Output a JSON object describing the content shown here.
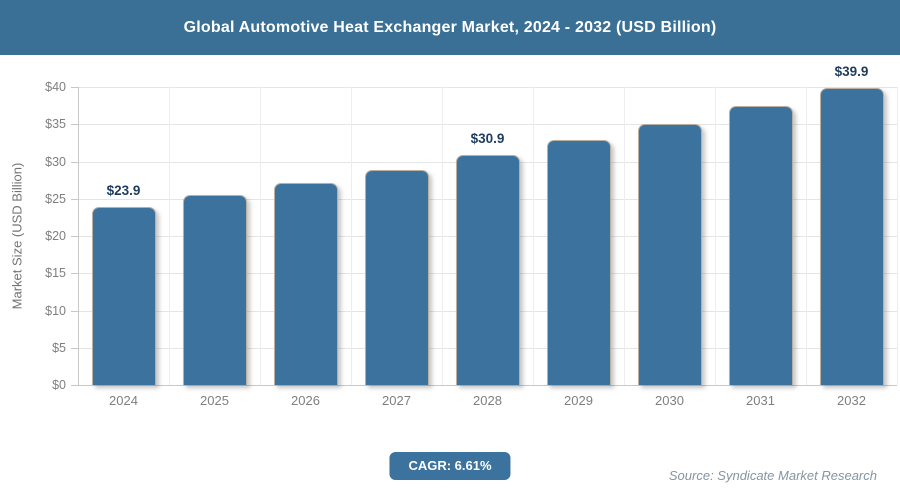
{
  "header": {
    "title": "Global Automotive Heat Exchanger Market, 2024 - 2032 (USD Billion)",
    "bg_color": "#3a7096"
  },
  "chart_data": {
    "type": "bar",
    "title": "Global Automotive Heat Exchanger Market, 2024 - 2032 (USD Billion)",
    "categories": [
      "2024",
      "2025",
      "2026",
      "2027",
      "2028",
      "2029",
      "2030",
      "2031",
      "2032"
    ],
    "values": [
      23.9,
      25.5,
      27.1,
      28.9,
      30.9,
      32.9,
      35.1,
      37.4,
      39.9
    ],
    "data_labels": [
      "$23.9",
      "",
      "",
      "",
      "$30.9",
      "",
      "",
      "",
      "$39.9"
    ],
    "xlabel": "",
    "ylabel": "Market Size (USD Billion)",
    "ylim": [
      0,
      40
    ],
    "ytick_step": 5,
    "ytick_labels": [
      "$0",
      "$5",
      "$10",
      "$15",
      "$20",
      "$25",
      "$30",
      "$35",
      "$40"
    ],
    "grid": true,
    "legend_position": "none",
    "bar_color": "#3c739e",
    "bar_border_color": "#b9b0a2",
    "value_label_color": "#1d3c5e"
  },
  "footer": {
    "cagr_label": "CAGR: 6.61%",
    "cagr_badge_color": "#3c739e",
    "source": "Source: Syndicate Market Research"
  }
}
